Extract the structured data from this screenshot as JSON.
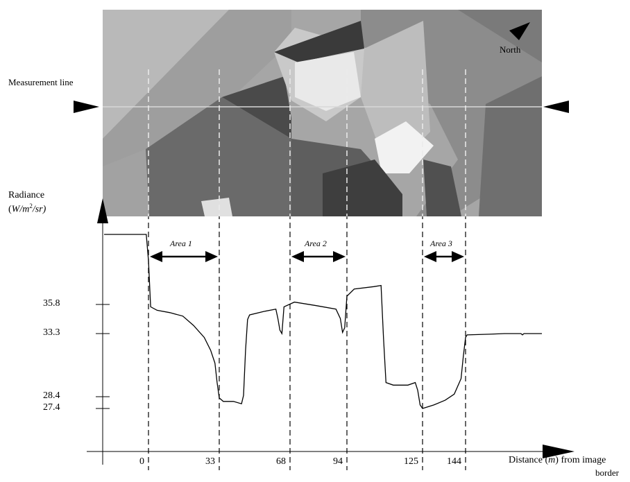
{
  "image_labels": {
    "north": "North",
    "measurement_line": "Measurement line",
    "y_axis_title": "Radiance",
    "y_axis_unit_prefix": "(",
    "y_axis_unit_W": "W/m",
    "y_axis_unit_sup": "2",
    "y_axis_unit_rest": "/sr)",
    "x_axis_title_a": "Distance (",
    "x_axis_title_m": "m",
    "x_axis_title_b": ") from image",
    "x_axis_title_c": "border"
  },
  "colors": {
    "curve": "#000000",
    "aerial_background": "#9a9a9a",
    "measurement_line": "#d8d8d8"
  },
  "chart_data": {
    "type": "line",
    "title": "",
    "xlabel": "Distance (m) from image border",
    "ylabel": "Radiance (W/m2/sr)",
    "x_ticks": [
      0,
      33,
      68,
      94,
      125,
      144
    ],
    "y_ticks": [
      35.8,
      33.3,
      28.4,
      27.4
    ],
    "areas": [
      {
        "label": "Area 1",
        "x": [
          0,
          33
        ]
      },
      {
        "label": "Area 2",
        "x": [
          68,
          94
        ]
      },
      {
        "label": "Area 3",
        "x": [
          125,
          144
        ]
      }
    ],
    "series": [
      {
        "values": [
          [
            -20,
            41.7
          ],
          [
            -1,
            41.7
          ],
          [
            0,
            39.5
          ],
          [
            1,
            35.6
          ],
          [
            4,
            35.3
          ],
          [
            10,
            35.1
          ],
          [
            16,
            34.8
          ],
          [
            21,
            34.0
          ],
          [
            26,
            33.0
          ],
          [
            29,
            32.0
          ],
          [
            31,
            31.0
          ],
          [
            32,
            29.5
          ],
          [
            33,
            28.3
          ],
          [
            35,
            28.0
          ],
          [
            40,
            28.0
          ],
          [
            44,
            27.8
          ],
          [
            45,
            28.5
          ],
          [
            46,
            32.0
          ],
          [
            47,
            34.5
          ],
          [
            48,
            34.9
          ],
          [
            55,
            35.2
          ],
          [
            61,
            35.4
          ],
          [
            62,
            34.6
          ],
          [
            63,
            33.6
          ],
          [
            64,
            33.3
          ],
          [
            65,
            35.6
          ],
          [
            70,
            36.0
          ],
          [
            80,
            35.7
          ],
          [
            89,
            35.4
          ],
          [
            91,
            34.6
          ],
          [
            92,
            33.4
          ],
          [
            93,
            33.8
          ],
          [
            94,
            36.5
          ],
          [
            97,
            37.1
          ],
          [
            105,
            37.3
          ],
          [
            108,
            37.4
          ],
          [
            109,
            33.0
          ],
          [
            110,
            29.5
          ],
          [
            113,
            29.3
          ],
          [
            119,
            29.3
          ],
          [
            122,
            29.5
          ],
          [
            123,
            28.9
          ],
          [
            124,
            27.7
          ],
          [
            125,
            27.4
          ],
          [
            130,
            27.7
          ],
          [
            135,
            28.1
          ],
          [
            139,
            28.6
          ],
          [
            142,
            29.8
          ],
          [
            143,
            31.5
          ],
          [
            144,
            33.0
          ],
          [
            145,
            33.2
          ],
          [
            160,
            33.25
          ],
          [
            170,
            33.3
          ],
          [
            181,
            33.3
          ],
          [
            182,
            33.2
          ],
          [
            183,
            33.3
          ],
          [
            195,
            33.3
          ]
        ]
      }
    ]
  }
}
